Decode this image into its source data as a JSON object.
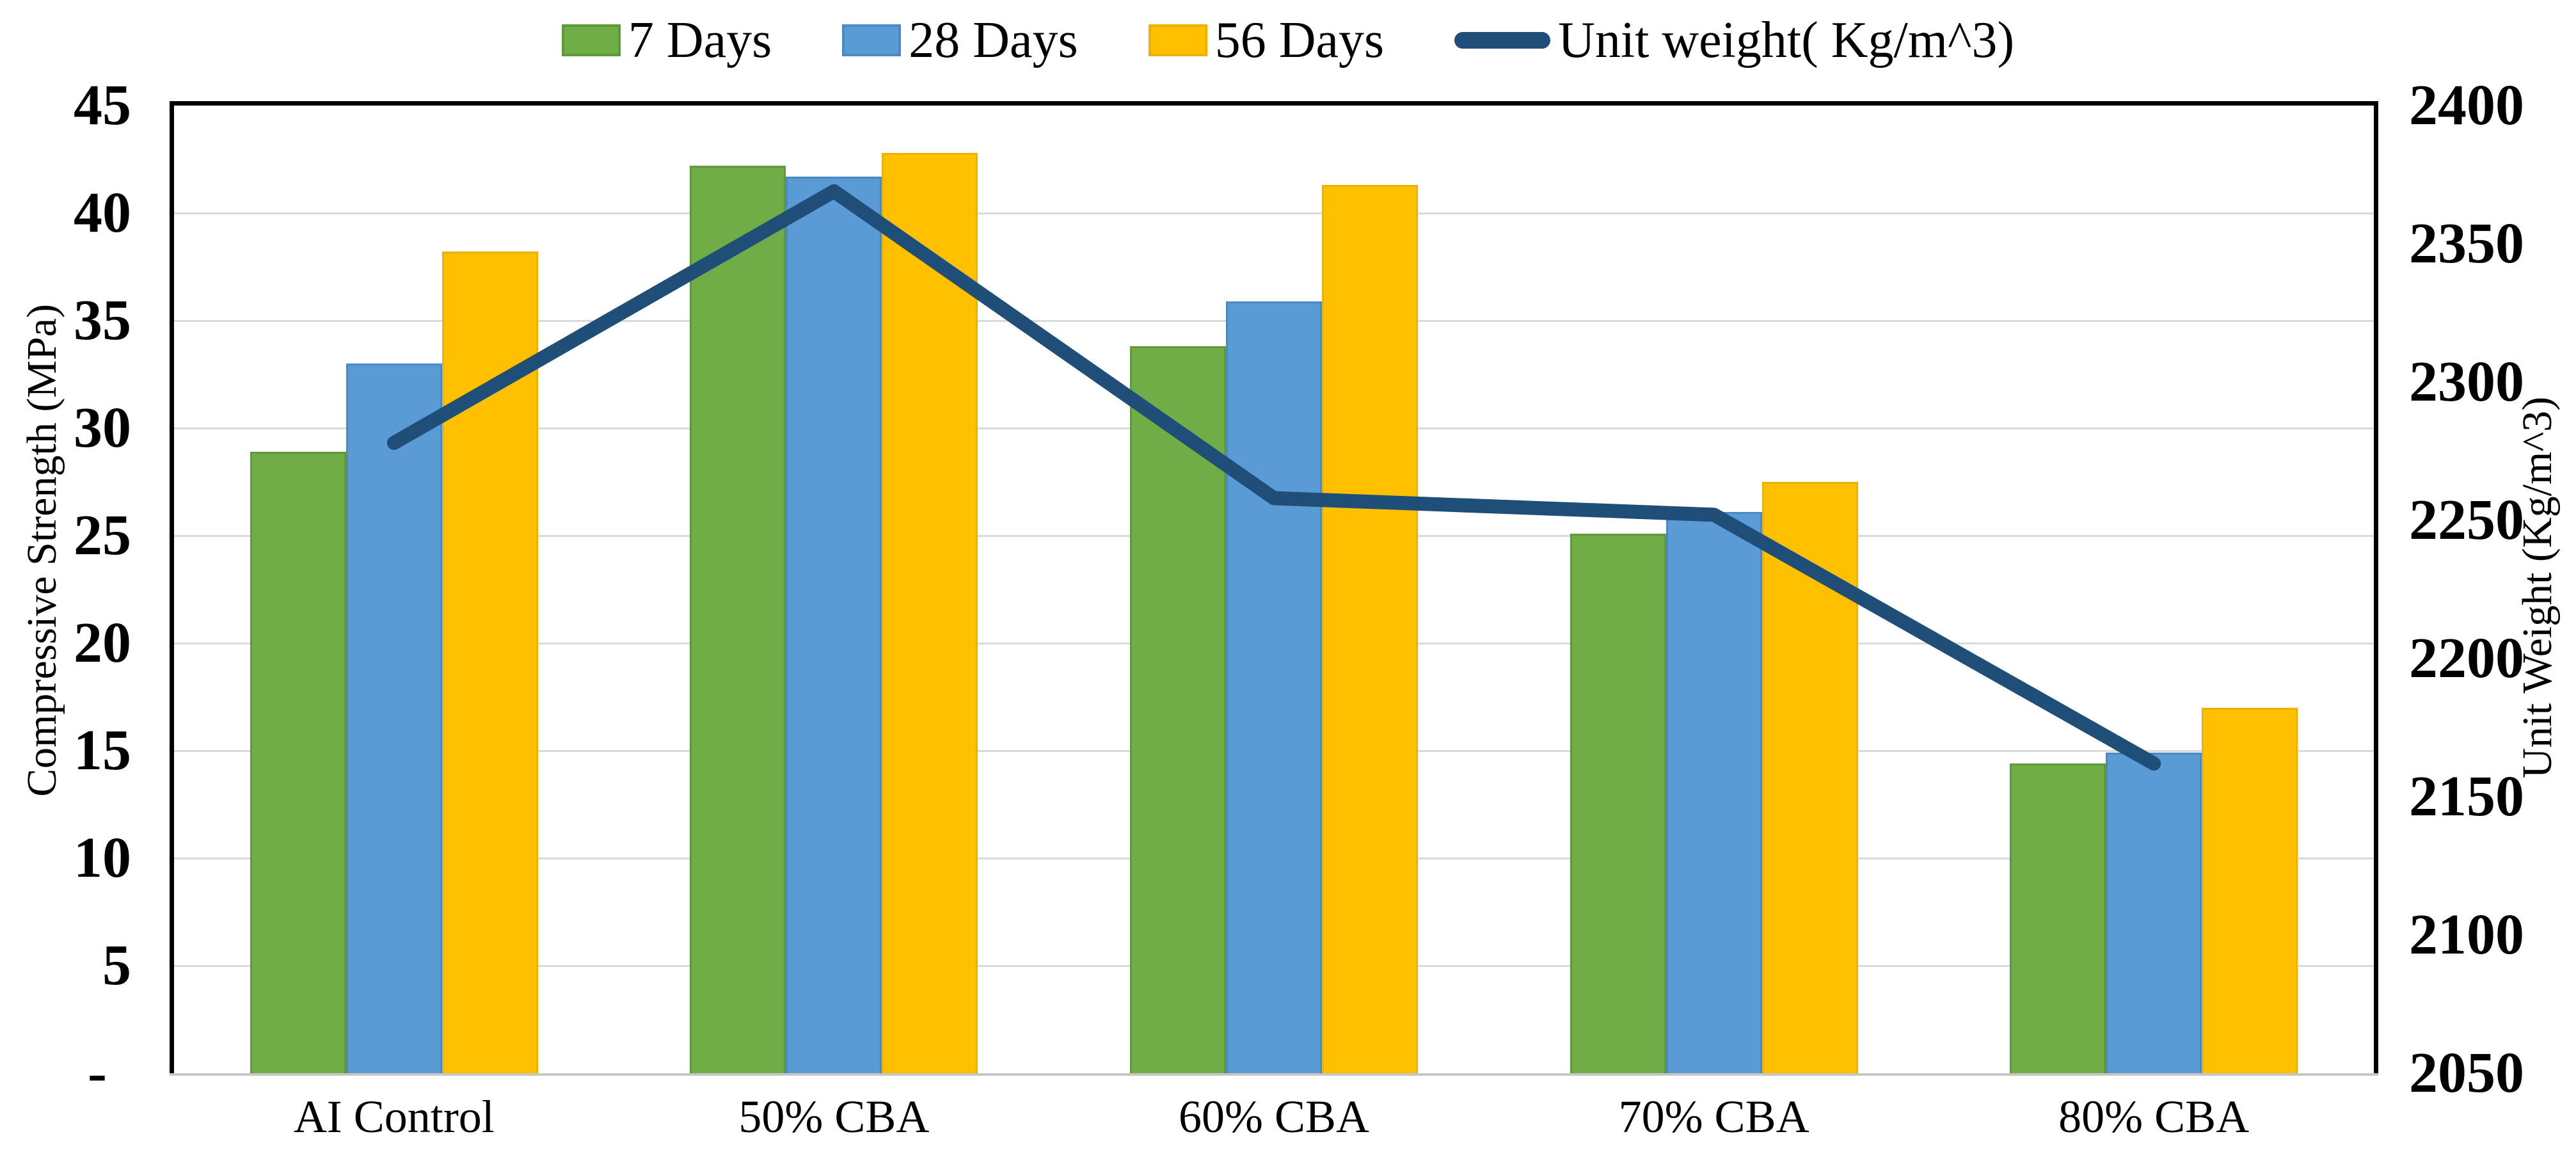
{
  "legend": {
    "items": [
      {
        "label": "7 Days",
        "marker": "box",
        "color": "#70AD47",
        "border": "#5F9A3A"
      },
      {
        "label": "28 Days",
        "marker": "box",
        "color": "#5B9BD5",
        "border": "#4A8AC4"
      },
      {
        "label": "56 Days",
        "marker": "box",
        "color": "#FFC000",
        "border": "#EDB100"
      },
      {
        "label": "Unit weight( Kg/m^3)",
        "marker": "line",
        "color": "#1F4E79"
      }
    ]
  },
  "left_axis": {
    "title": "Compressive Strength (MPa)",
    "tick_labels": [
      "45",
      "40",
      "35",
      "30",
      "25",
      "20",
      "15",
      "10",
      "5",
      "-"
    ],
    "min": 0,
    "max": 45,
    "step": 5
  },
  "right_axis": {
    "title": "Unit Weight (Kg/m^3)",
    "tick_labels": [
      "2400",
      "2350",
      "2300",
      "2250",
      "2200",
      "2150",
      "2100",
      "2050"
    ],
    "min": 2050,
    "max": 2400,
    "step": 50
  },
  "x_axis": {
    "categories": [
      "AI Control",
      "50% CBA",
      "60% CBA",
      "70% CBA",
      "80% CBA"
    ]
  },
  "chart_data": {
    "type": "bar",
    "subtype": "grouped-bars-with-line-overlay",
    "categories": [
      "AI Control",
      "50% CBA",
      "60% CBA",
      "70% CBA",
      "80% CBA"
    ],
    "series": [
      {
        "name": "7 Days",
        "type": "bar",
        "axis": "left",
        "color": "#70AD47",
        "border": "#5F9A3A",
        "values": [
          28.9,
          42.2,
          33.8,
          25.1,
          14.4
        ]
      },
      {
        "name": "28 Days",
        "type": "bar",
        "axis": "left",
        "color": "#5B9BD5",
        "border": "#4A8AC4",
        "values": [
          33.0,
          41.7,
          35.9,
          26.1,
          14.9
        ]
      },
      {
        "name": "56 Days",
        "type": "bar",
        "axis": "left",
        "color": "#FFC000",
        "border": "#EDB100",
        "values": [
          38.2,
          42.8,
          41.3,
          27.5,
          17.0
        ]
      },
      {
        "name": "Unit weight( Kg/m^3)",
        "type": "line",
        "axis": "right",
        "color": "#1F4E79",
        "values": [
          2278,
          2369,
          2258,
          2252,
          2162
        ]
      }
    ],
    "xlabel": "",
    "ylabel_left": "Compressive Strength (MPa)",
    "ylabel_right": "Unit Weight (Kg/m^3)",
    "left_ylim": [
      0,
      45
    ],
    "right_ylim": [
      2050,
      2400
    ],
    "grid": "horizontal",
    "legend_position": "top"
  },
  "colors": {
    "gridline": "#D9D9D9",
    "spine": "#000000",
    "bottom_spine": "#C6C6C6",
    "background": "#FFFFFF",
    "text": "#000000"
  }
}
